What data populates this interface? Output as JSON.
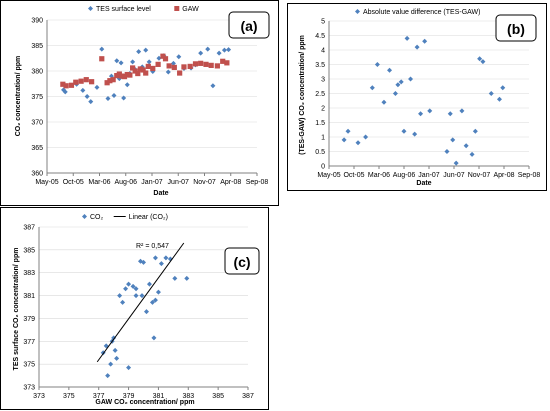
{
  "chart_data": [
    {
      "id": "a",
      "type": "scatter",
      "panel_label": "(a)",
      "title": "",
      "xlabel": "Date",
      "ylabel": "CO₂ concentration/ ppm",
      "x_ticks": [
        "May-05",
        "Oct-05",
        "Mar-06",
        "Aug-06",
        "Jan-07",
        "Jun-07",
        "Nov-07",
        "Apr-08",
        "Sep-08"
      ],
      "xlim": [
        "2005-05-01",
        "2008-09-01"
      ],
      "ylim": [
        360,
        390
      ],
      "y_ticks": [
        "360",
        "365",
        "370",
        "375",
        "380",
        "385",
        "390"
      ],
      "grid": "horizontal",
      "legend_position": "top",
      "series": [
        {
          "name": "TES surface level",
          "marker": "diamond",
          "color": "#4f81bd",
          "points": [
            [
              "2005-08-05",
              376.3
            ],
            [
              "2005-08-15",
              375.9
            ],
            [
              "2005-10-20",
              377.4
            ],
            [
              "2005-11-25",
              376.2
            ],
            [
              "2005-12-20",
              375.0
            ],
            [
              "2006-01-10",
              374.0
            ],
            [
              "2006-02-15",
              376.8
            ],
            [
              "2006-03-15",
              384.3
            ],
            [
              "2006-04-20",
              374.6
            ],
            [
              "2006-05-10",
              379.0
            ],
            [
              "2006-05-25",
              375.2
            ],
            [
              "2006-06-10",
              382.0
            ],
            [
              "2006-06-25",
              378.5
            ],
            [
              "2006-07-05",
              381.6
            ],
            [
              "2006-07-20",
              374.7
            ],
            [
              "2006-08-10",
              377.3
            ],
            [
              "2006-08-25",
              379.5
            ],
            [
              "2006-09-10",
              381.8
            ],
            [
              "2006-09-25",
              380.3
            ],
            [
              "2006-10-15",
              383.8
            ],
            [
              "2006-11-05",
              380.8
            ],
            [
              "2006-11-25",
              384.1
            ],
            [
              "2006-12-15",
              381.8
            ],
            [
              "2007-01-05",
              379.9
            ],
            [
              "2007-02-10",
              382.5
            ],
            [
              "2007-03-10",
              383.0
            ],
            [
              "2007-04-05",
              379.8
            ],
            [
              "2007-05-05",
              381.5
            ],
            [
              "2007-06-05",
              382.8
            ],
            [
              "2007-07-05",
              380.5
            ],
            [
              "2007-08-15",
              380.6
            ],
            [
              "2007-09-10",
              381.2
            ],
            [
              "2007-10-10",
              383.5
            ],
            [
              "2007-11-20",
              384.3
            ],
            [
              "2007-12-20",
              377.1
            ],
            [
              "2008-01-25",
              383.5
            ],
            [
              "2008-02-25",
              384.1
            ],
            [
              "2008-03-20",
              384.2
            ]
          ]
        },
        {
          "name": "GAW",
          "marker": "square",
          "color": "#c0504d",
          "points": [
            [
              "2005-08-01",
              377.4
            ],
            [
              "2005-08-20",
              377.1
            ],
            [
              "2005-09-20",
              377.2
            ],
            [
              "2005-10-15",
              377.8
            ],
            [
              "2005-11-15",
              378.0
            ],
            [
              "2005-12-15",
              378.3
            ],
            [
              "2006-01-15",
              377.9
            ],
            [
              "2006-03-15",
              382.4
            ],
            [
              "2006-04-15",
              377.7
            ],
            [
              "2006-05-01",
              378.1
            ],
            [
              "2006-05-20",
              378.3
            ],
            [
              "2006-06-10",
              379.1
            ],
            [
              "2006-06-25",
              379.4
            ],
            [
              "2006-07-10",
              379.0
            ],
            [
              "2006-07-25",
              378.9
            ],
            [
              "2006-08-10",
              379.3
            ],
            [
              "2006-08-25",
              379.2
            ],
            [
              "2006-09-10",
              380.6
            ],
            [
              "2006-09-25",
              380.0
            ],
            [
              "2006-10-10",
              379.5
            ],
            [
              "2006-10-25",
              380.4
            ],
            [
              "2006-11-10",
              380.2
            ],
            [
              "2006-11-25",
              379.6
            ],
            [
              "2006-12-10",
              380.9
            ],
            [
              "2007-01-05",
              380.5
            ],
            [
              "2007-02-05",
              381.3
            ],
            [
              "2007-03-05",
              382.9
            ],
            [
              "2007-03-20",
              382.4
            ],
            [
              "2007-04-10",
              381.0
            ],
            [
              "2007-05-10",
              380.7
            ],
            [
              "2007-06-10",
              379.6
            ],
            [
              "2007-07-05",
              380.8
            ],
            [
              "2007-08-10",
              380.9
            ],
            [
              "2007-09-10",
              381.4
            ],
            [
              "2007-10-10",
              381.5
            ],
            [
              "2007-11-10",
              381.3
            ],
            [
              "2007-12-10",
              381.1
            ],
            [
              "2008-01-15",
              381.0
            ],
            [
              "2008-02-15",
              381.9
            ],
            [
              "2008-03-10",
              381.6
            ]
          ]
        }
      ]
    },
    {
      "id": "b",
      "type": "scatter",
      "panel_label": "(b)",
      "title": "",
      "xlabel": "Date",
      "ylabel": "(TES-GAW) CO₂ concentration/ ppm",
      "x_ticks": [
        "May-05",
        "Oct-05",
        "Mar-06",
        "Aug-06",
        "Jan-07",
        "Jun-07",
        "Nov-07",
        "Apr-08",
        "Sep-08"
      ],
      "xlim": [
        "2005-05-01",
        "2008-09-01"
      ],
      "ylim": [
        0,
        5
      ],
      "y_ticks": [
        "0",
        "0.5",
        "1",
        "1.5",
        "2",
        "2.5",
        "3",
        "3.5",
        "4",
        "4.5",
        "5"
      ],
      "grid": "horizontal",
      "legend_position": "top",
      "series": [
        {
          "name": "Absolute value difference (TES-GAW)",
          "marker": "diamond",
          "color": "#4f81bd",
          "points": [
            [
              "2005-08-01",
              0.9
            ],
            [
              "2005-08-25",
              1.2
            ],
            [
              "2005-10-25",
              0.8
            ],
            [
              "2005-12-10",
              1.0
            ],
            [
              "2006-01-20",
              2.7
            ],
            [
              "2006-02-20",
              3.5
            ],
            [
              "2006-04-01",
              2.2
            ],
            [
              "2006-05-05",
              3.3
            ],
            [
              "2006-06-10",
              2.5
            ],
            [
              "2006-06-25",
              2.8
            ],
            [
              "2006-07-15",
              2.9
            ],
            [
              "2006-08-01",
              1.2
            ],
            [
              "2006-08-20",
              4.4
            ],
            [
              "2006-09-10",
              3.0
            ],
            [
              "2006-10-05",
              1.1
            ],
            [
              "2006-10-20",
              4.1
            ],
            [
              "2006-11-10",
              1.8
            ],
            [
              "2006-12-05",
              4.3
            ],
            [
              "2007-01-05",
              1.9
            ],
            [
              "2007-04-20",
              0.5
            ],
            [
              "2007-05-10",
              1.8
            ],
            [
              "2007-05-25",
              0.9
            ],
            [
              "2007-06-15",
              0.1
            ],
            [
              "2007-07-20",
              1.9
            ],
            [
              "2007-08-15",
              0.7
            ],
            [
              "2007-09-20",
              0.4
            ],
            [
              "2007-10-10",
              1.2
            ],
            [
              "2007-11-05",
              3.7
            ],
            [
              "2007-11-25",
              3.6
            ],
            [
              "2008-01-15",
              2.5
            ],
            [
              "2008-03-05",
              2.3
            ],
            [
              "2008-03-25",
              2.7
            ]
          ]
        }
      ]
    },
    {
      "id": "c",
      "type": "scatter",
      "panel_label": "(c)",
      "title": "",
      "xlabel": "GAW CO₂ concentration/ ppm",
      "ylabel": "TES surface CO₂ concentration/ ppm",
      "xlim": [
        373,
        387
      ],
      "ylim": [
        373,
        387
      ],
      "x_ticks": [
        "373",
        "375",
        "377",
        "379",
        "381",
        "383",
        "385",
        "387"
      ],
      "y_ticks": [
        "373",
        "375",
        "377",
        "379",
        "381",
        "383",
        "385",
        "387"
      ],
      "grid": "horizontal",
      "legend_position": "top",
      "annotation": "R² = 0,547",
      "series": [
        {
          "name": "CO₂",
          "marker": "diamond",
          "color": "#4f81bd",
          "points": [
            [
              377.3,
              376.0
            ],
            [
              377.5,
              376.6
            ],
            [
              377.6,
              374.0
            ],
            [
              377.8,
              375.0
            ],
            [
              377.9,
              377.0
            ],
            [
              378.0,
              377.3
            ],
            [
              378.1,
              376.2
            ],
            [
              378.2,
              375.5
            ],
            [
              378.4,
              381.0
            ],
            [
              378.6,
              380.4
            ],
            [
              378.8,
              381.6
            ],
            [
              379.0,
              374.7
            ],
            [
              379.0,
              382.0
            ],
            [
              379.3,
              381.8
            ],
            [
              379.5,
              381.6
            ],
            [
              379.5,
              381.0
            ],
            [
              379.8,
              384.0
            ],
            [
              379.9,
              381.0
            ],
            [
              380.0,
              383.9
            ],
            [
              380.2,
              379.6
            ],
            [
              380.4,
              382.0
            ],
            [
              380.6,
              380.4
            ],
            [
              380.7,
              377.3
            ],
            [
              380.8,
              384.3
            ],
            [
              381.0,
              381.3
            ],
            [
              381.2,
              383.8
            ],
            [
              381.5,
              384.3
            ],
            [
              381.8,
              384.2
            ],
            [
              382.1,
              382.5
            ],
            [
              382.9,
              382.5
            ],
            [
              380.8,
              380.6
            ]
          ]
        },
        {
          "name": "Linear (CO₂)",
          "marker": "line",
          "color": "#000000",
          "points": [
            [
              376.9,
              375.2
            ],
            [
              382.7,
              385.6
            ]
          ]
        }
      ]
    }
  ]
}
